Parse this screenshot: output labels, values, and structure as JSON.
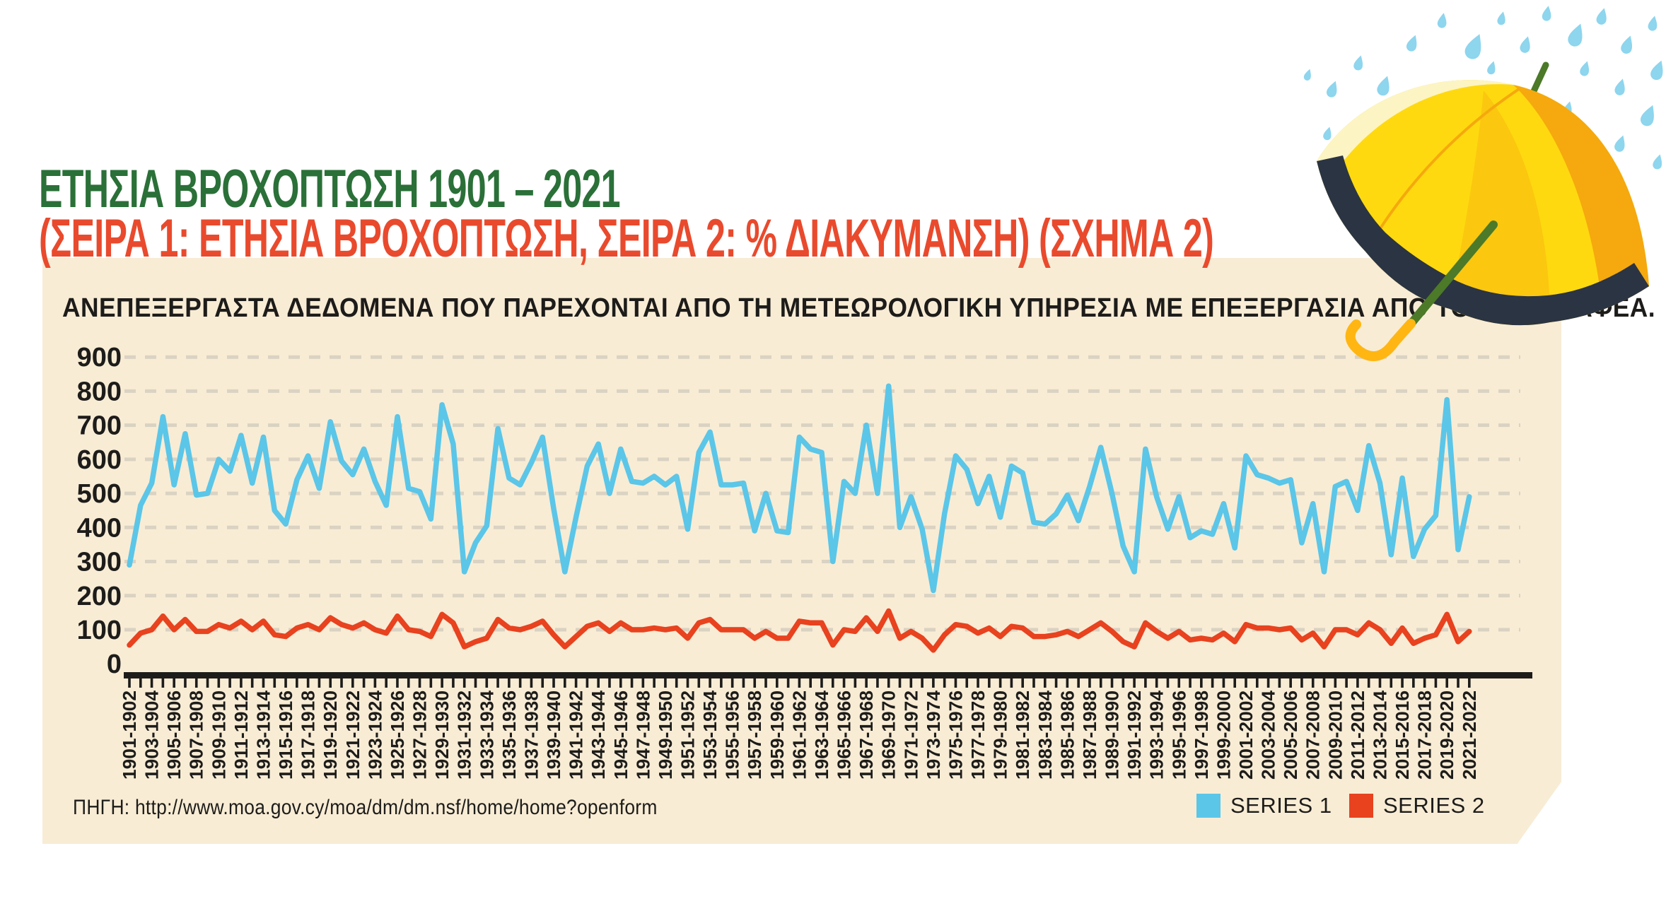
{
  "header": {
    "title": "ΕΤΗΣΙΑ ΒΡΟΧΟΠΤΩΣΗ 1901 – 2021",
    "subtitle": "(ΣΕΙΡΑ 1: ΕΤΗΣΙΑ ΒΡΟΧΟΠΤΩΣΗ, ΣΕΙΡΑ 2: % ΔΙΑΚΥΜΑΝΣΗ)  (ΣΧΗΜΑ 2)",
    "title_color": "#2a7038",
    "subtitle_color": "#e94a2d"
  },
  "panel": {
    "background_color": "#f8ecd5",
    "note": "ΑΝΕΠΕΞΕΡΓΑΣΤΑ ΔΕΔΟΜΕΝΑ ΠΟΥ ΠΑΡΕΧΟΝΤΑΙ ΑΠΟ ΤΗ ΜΕΤΕΩΡΟΛΟΓΙΚΗ ΥΠΗΡΕΣΙΑ ΜΕ ΕΠΕΞΕΡΓΑΣΙΑ ΑΠΟ ΤΟΝ ΣΥΓΓΡΑΦΕΑ."
  },
  "source": {
    "label": "ΠΗΓΗ: http://www.moa.gov.cy/moa/dm/dm.nsf/home/home?openform"
  },
  "legend": [
    {
      "label": "SERIES 1",
      "color": "#5bc6e8"
    },
    {
      "label": "SERIES 2",
      "color": "#e8421f"
    }
  ],
  "illustration": {
    "name": "yellow-umbrella-with-rain",
    "canopy_yellow": "#ffd90f",
    "canopy_orange": "#f5a90e",
    "canopy_mid": "#fbc70f",
    "canopy_pale": "#fcf4c3",
    "underside_navy": "#2b3442",
    "shaft_green": "#4c7a28",
    "handle_gold": "#ffb612",
    "raindrop_blue": "#8ed5ee"
  },
  "chart_data": {
    "type": "line",
    "title": "",
    "xlabel": "",
    "ylabel": "",
    "ylim": [
      0,
      900
    ],
    "yticks": [
      0,
      100,
      200,
      300,
      400,
      500,
      600,
      700,
      800,
      900
    ],
    "grid": "horizontal dashed",
    "legend_position": "bottom-right",
    "axis_color": "#1d1c1a",
    "grid_color": "#dad2c2",
    "points_per_label": 2,
    "categories": [
      "1901-1902",
      "1903-1904",
      "1905-1906",
      "1907-1908",
      "1909-1910",
      "1911-1912",
      "1913-1914",
      "1915-1916",
      "1917-1918",
      "1919-1920",
      "1921-1922",
      "1923-1924",
      "1925-1926",
      "1927-1928",
      "1929-1930",
      "1931-1932",
      "1933-1934",
      "1935-1936",
      "1937-1938",
      "1939-1940",
      "1941-1942",
      "1943-1944",
      "1945-1946",
      "1947-1948",
      "1949-1950",
      "1951-1952",
      "1953-1954",
      "1955-1956",
      "1957-1958",
      "1959-1960",
      "1961-1962",
      "1963-1964",
      "1965-1966",
      "1967-1968",
      "1969-1970",
      "1971-1972",
      "1973-1974",
      "1975-1976",
      "1977-1978",
      "1979-1980",
      "1981-1982",
      "1983-1984",
      "1985-1986",
      "1987-1988",
      "1989-1990",
      "1991-1992",
      "1993-1994",
      "1995-1996",
      "1997-1998",
      "1999-2000",
      "2001-2002",
      "2003-2004",
      "2005-2006",
      "2007-2008",
      "2009-2010",
      "2011-2012",
      "2013-2014",
      "2015-2016",
      "2017-2018",
      "2019-2020",
      "2021-2022"
    ],
    "series": [
      {
        "name": "SERIES 1",
        "color": "#5bc6e8",
        "values": [
          290,
          465,
          530,
          725,
          525,
          675,
          495,
          500,
          600,
          565,
          670,
          530,
          665,
          450,
          410,
          540,
          610,
          515,
          710,
          595,
          555,
          630,
          535,
          465,
          725,
          515,
          505,
          425,
          760,
          645,
          270,
          355,
          405,
          690,
          545,
          525,
          590,
          665,
          455,
          270,
          430,
          580,
          645,
          500,
          630,
          535,
          530,
          550,
          525,
          550,
          395,
          620,
          680,
          525,
          525,
          530,
          390,
          500,
          390,
          385,
          665,
          630,
          620,
          300,
          535,
          500,
          700,
          500,
          815,
          400,
          490,
          395,
          215,
          440,
          610,
          570,
          470,
          550,
          430,
          580,
          560,
          415,
          410,
          440,
          495,
          420,
          520,
          635,
          500,
          345,
          270,
          630,
          490,
          395,
          490,
          370,
          390,
          380,
          470,
          340,
          610,
          555,
          545,
          530,
          540,
          355,
          470,
          270,
          520,
          535,
          450,
          640,
          530,
          320,
          545,
          315,
          395,
          435,
          775,
          335,
          490
        ]
      },
      {
        "name": "SERIES 2",
        "color": "#e8421f",
        "values": [
          55,
          90,
          100,
          140,
          100,
          130,
          95,
          95,
          115,
          105,
          125,
          100,
          125,
          85,
          80,
          105,
          115,
          100,
          135,
          115,
          105,
          120,
          100,
          90,
          140,
          100,
          95,
          80,
          145,
          120,
          50,
          65,
          75,
          130,
          105,
          100,
          110,
          125,
          85,
          50,
          80,
          110,
          120,
          95,
          120,
          100,
          100,
          105,
          100,
          105,
          75,
          120,
          130,
          100,
          100,
          100,
          75,
          95,
          75,
          75,
          125,
          120,
          120,
          55,
          100,
          95,
          135,
          95,
          155,
          75,
          95,
          75,
          40,
          85,
          115,
          110,
          90,
          105,
          80,
          110,
          105,
          80,
          80,
          85,
          95,
          80,
          100,
          120,
          95,
          65,
          50,
          120,
          95,
          75,
          95,
          70,
          75,
          70,
          90,
          65,
          115,
          105,
          105,
          100,
          105,
          70,
          90,
          50,
          100,
          100,
          85,
          120,
          100,
          60,
          105,
          60,
          75,
          85,
          145,
          65,
          95
        ]
      }
    ]
  }
}
